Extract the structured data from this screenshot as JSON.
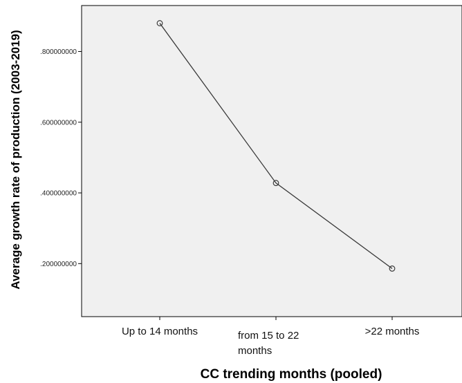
{
  "chart_data": {
    "type": "line",
    "categories": [
      "Up to 14 months",
      "from 15 to 22 months",
      ">22 months"
    ],
    "category_lines": [
      [
        "Up to 14 months"
      ],
      [
        "from 15 to 22",
        "months"
      ],
      [
        ">22 months"
      ]
    ],
    "series": [
      {
        "values": [
          0.88,
          0.428,
          0.186
        ]
      }
    ],
    "ytick_values": [
      0.2,
      0.4,
      0.6,
      0.8
    ],
    "ytick_labels": [
      ".200000000",
      ".400000000",
      ".600000000",
      ".800000000"
    ],
    "ylim": [
      0.05,
      0.93
    ],
    "title": "",
    "xlabel": "CC trending months (pooled)",
    "ylabel": "Average growth rate of production (2003-2019)",
    "grid": false,
    "colors": {
      "plot_bg": "#f0f0f0",
      "line": "#3a3a3a",
      "frame": "#000000"
    }
  }
}
